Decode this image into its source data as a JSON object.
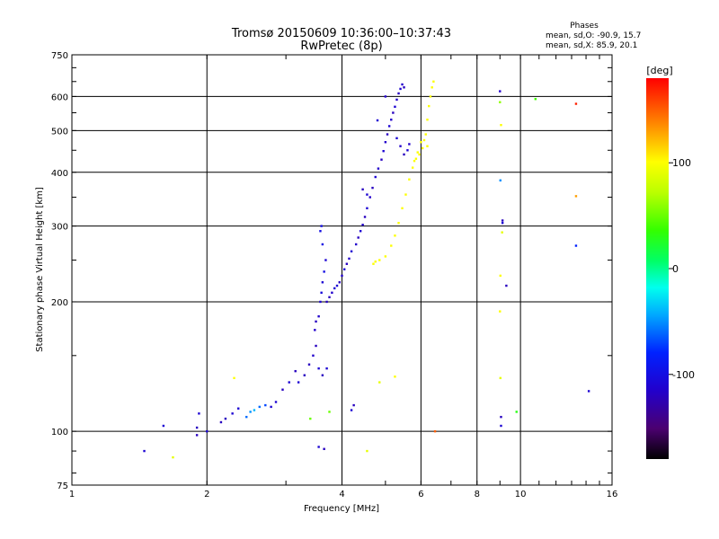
{
  "chart_data": {
    "type": "scatter",
    "title": "Tromsø 20150609 10:36:00–10:37:43",
    "subtitle": "RwPretec (8p)",
    "xlabel": "Frequency [MHz]",
    "ylabel": "Stationary phase Virtual Height [km]",
    "x_scale": "log",
    "y_scale": "log",
    "xlim": [
      1,
      16
    ],
    "ylim": [
      75,
      750
    ],
    "x_ticks": [
      1,
      2,
      4,
      6,
      8,
      10,
      16
    ],
    "x_tick_labels": [
      "1",
      "2",
      "4",
      "6",
      "8",
      "10",
      "16"
    ],
    "y_ticks": [
      75,
      100,
      200,
      300,
      400,
      500,
      600,
      750
    ],
    "y_tick_labels": [
      "75",
      "100",
      "200",
      "300",
      "400",
      "500",
      "600",
      "750"
    ],
    "grid": true,
    "phases_header": "Phases",
    "phase_stats": [
      "mean, sd,O: -90.9, 15.7",
      "mean, sd,X:  85.9, 20.1"
    ],
    "colorbar": {
      "label": "[deg]",
      "range": [
        -180,
        180
      ],
      "ticks": [
        100,
        0,
        -100
      ],
      "tick_labels": [
        "100",
        "0",
        "-100"
      ]
    },
    "series": [
      {
        "points": [
          [
            1.45,
            90,
            -110
          ],
          [
            1.6,
            103,
            -110
          ],
          [
            1.68,
            87,
            90
          ],
          [
            1.9,
            98,
            -120
          ],
          [
            1.9,
            102,
            -120
          ],
          [
            1.92,
            110,
            -110
          ],
          [
            2.0,
            100,
            -110
          ],
          [
            2.15,
            105,
            -120
          ],
          [
            2.2,
            107,
            -120
          ],
          [
            2.28,
            110,
            -110
          ],
          [
            2.35,
            113,
            -110
          ],
          [
            2.45,
            108,
            -60
          ],
          [
            2.5,
            111,
            -50
          ],
          [
            2.55,
            112,
            -40
          ],
          [
            2.62,
            114,
            -60
          ],
          [
            2.7,
            115,
            -70
          ],
          [
            2.78,
            114,
            -110
          ],
          [
            2.85,
            117,
            -110
          ],
          [
            2.95,
            125,
            -120
          ],
          [
            3.05,
            130,
            -110
          ],
          [
            3.15,
            138,
            -120
          ],
          [
            3.2,
            130,
            -110
          ],
          [
            3.3,
            135,
            -120
          ],
          [
            3.38,
            143,
            -120
          ],
          [
            3.45,
            150,
            -115
          ],
          [
            3.5,
            158,
            -120
          ],
          [
            3.55,
            140,
            -110
          ],
          [
            3.62,
            135,
            -120
          ],
          [
            3.7,
            140,
            -110
          ],
          [
            3.48,
            172,
            -115
          ],
          [
            3.5,
            180,
            -120
          ],
          [
            3.55,
            185,
            -115
          ],
          [
            3.58,
            200,
            -110
          ],
          [
            3.6,
            210,
            -105
          ],
          [
            3.62,
            222,
            -110
          ],
          [
            3.65,
            235,
            -100
          ],
          [
            3.68,
            250,
            -110
          ],
          [
            3.62,
            272,
            -100
          ],
          [
            3.58,
            292,
            -100
          ],
          [
            3.6,
            300,
            -100
          ],
          [
            3.7,
            200,
            -120
          ],
          [
            3.75,
            205,
            -120
          ],
          [
            3.8,
            210,
            -115
          ],
          [
            3.85,
            215,
            -110
          ],
          [
            3.9,
            218,
            -110
          ],
          [
            3.95,
            222,
            -120
          ],
          [
            4.0,
            230,
            -115
          ],
          [
            4.05,
            238,
            -110
          ],
          [
            4.1,
            245,
            -120
          ],
          [
            4.15,
            252,
            -115
          ],
          [
            4.2,
            262,
            -110
          ],
          [
            4.3,
            272,
            -115
          ],
          [
            4.35,
            282,
            -120
          ],
          [
            4.4,
            292,
            -110
          ],
          [
            4.45,
            302,
            -115
          ],
          [
            4.5,
            315,
            -120
          ],
          [
            4.55,
            330,
            -110
          ],
          [
            4.62,
            350,
            -115
          ],
          [
            4.68,
            368,
            -120
          ],
          [
            4.75,
            390,
            -110
          ],
          [
            4.82,
            408,
            -115
          ],
          [
            4.9,
            428,
            -120
          ],
          [
            4.95,
            448,
            -110
          ],
          [
            5.0,
            470,
            -115
          ],
          [
            5.05,
            490,
            -120
          ],
          [
            5.1,
            512,
            -110
          ],
          [
            5.15,
            530,
            -115
          ],
          [
            5.2,
            550,
            -120
          ],
          [
            5.25,
            568,
            -110
          ],
          [
            5.3,
            590,
            -115
          ],
          [
            5.35,
            610,
            -120
          ],
          [
            5.4,
            625,
            -110
          ],
          [
            5.45,
            640,
            -115
          ],
          [
            5.5,
            630,
            -120
          ],
          [
            5.3,
            480,
            -110
          ],
          [
            5.4,
            460,
            -115
          ],
          [
            5.5,
            440,
            -120
          ],
          [
            5.6,
            450,
            -110
          ],
          [
            5.65,
            465,
            -115
          ],
          [
            4.45,
            365,
            -120
          ],
          [
            4.55,
            355,
            -110
          ],
          [
            4.8,
            528,
            -110
          ],
          [
            5.0,
            600,
            -115
          ],
          [
            4.2,
            112,
            -110
          ],
          [
            4.25,
            115,
            -120
          ],
          [
            3.55,
            92,
            -110
          ],
          [
            3.65,
            91,
            -120
          ],
          [
            9.05,
            108,
            -120
          ],
          [
            9.05,
            103,
            -110
          ],
          [
            9.12,
            309,
            -120
          ],
          [
            9.12,
            305,
            -110
          ],
          [
            9.3,
            218,
            -120
          ],
          [
            9.02,
            383,
            -50
          ],
          [
            9.0,
            617,
            -115
          ],
          [
            13.3,
            270,
            -80
          ],
          [
            14.2,
            124,
            -110
          ],
          [
            4.55,
            90,
            90
          ],
          [
            4.85,
            130,
            90
          ],
          [
            2.3,
            133,
            100
          ],
          [
            3.4,
            107,
            50
          ],
          [
            3.75,
            111,
            50
          ],
          [
            9.02,
            133,
            90
          ],
          [
            9.0,
            190,
            100
          ],
          [
            9.02,
            230,
            100
          ],
          [
            9.1,
            290,
            90
          ],
          [
            9.05,
            515,
            100
          ],
          [
            9.0,
            582,
            60
          ],
          [
            9.8,
            111,
            30
          ],
          [
            10.8,
            592,
            40
          ],
          [
            13.3,
            577,
            170
          ],
          [
            13.3,
            352,
            130
          ],
          [
            5.25,
            134,
            100
          ],
          [
            6.45,
            100,
            150
          ],
          [
            4.7,
            245,
            100
          ],
          [
            4.75,
            248,
            100
          ],
          [
            4.85,
            250,
            100
          ],
          [
            5.0,
            255,
            100
          ],
          [
            5.15,
            270,
            100
          ],
          [
            5.25,
            285,
            100
          ],
          [
            5.35,
            305,
            100
          ],
          [
            5.45,
            330,
            100
          ],
          [
            5.55,
            355,
            100
          ],
          [
            5.65,
            385,
            100
          ],
          [
            5.75,
            410,
            100
          ],
          [
            5.85,
            430,
            100
          ],
          [
            5.95,
            440,
            100
          ],
          [
            6.05,
            455,
            100
          ],
          [
            6.15,
            490,
            100
          ],
          [
            6.2,
            530,
            100
          ],
          [
            6.25,
            570,
            100
          ],
          [
            6.3,
            600,
            100
          ],
          [
            6.35,
            630,
            100
          ],
          [
            6.4,
            650,
            100
          ],
          [
            6.0,
            470,
            100
          ],
          [
            6.1,
            475,
            100
          ],
          [
            5.9,
            445,
            100
          ],
          [
            5.8,
            425,
            100
          ],
          [
            6.2,
            460,
            100
          ]
        ]
      }
    ]
  }
}
